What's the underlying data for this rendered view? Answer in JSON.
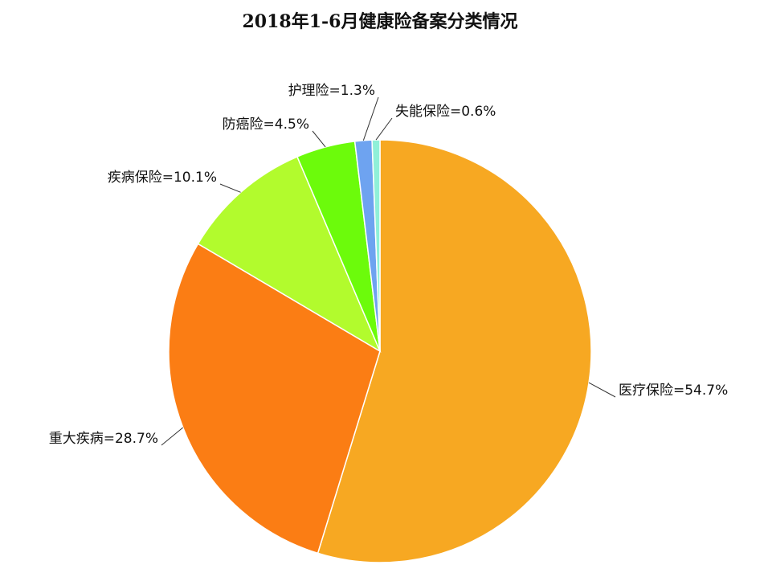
{
  "chart_data": {
    "type": "pie",
    "title": "2018年1-6月健康险备案分类情况",
    "categories": [
      "医疗保险=54.7%",
      "重大疾病=28.7%",
      "疾病保险=10.1%",
      "防癌险=4.5%",
      "护理险=1.3%",
      "失能保险=0.6%"
    ],
    "values": [
      54.7,
      28.7,
      10.1,
      4.5,
      1.3,
      0.6
    ],
    "colors": [
      "#f7a822",
      "#fb7d14",
      "#b2fb2d",
      "#6cfb0b",
      "#6ea3f0",
      "#8ff0d8"
    ]
  }
}
